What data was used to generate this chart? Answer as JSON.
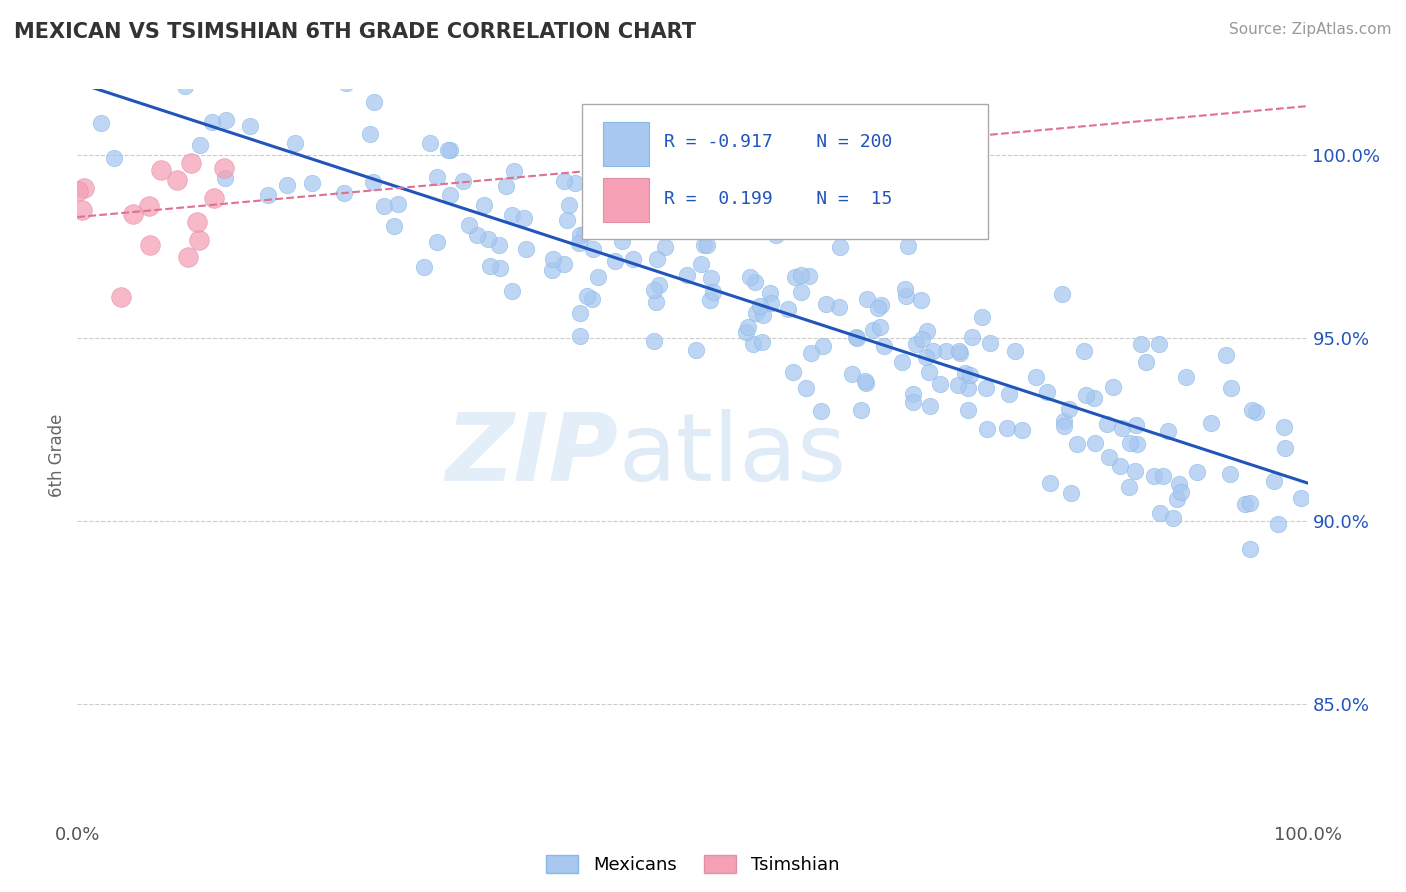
{
  "title": "MEXICAN VS TSIMSHIAN 6TH GRADE CORRELATION CHART",
  "source_text": "Source: ZipAtlas.com",
  "ylabel": "6th Grade",
  "xlim": [
    0.0,
    1.0
  ],
  "ylim": [
    0.818,
    1.018
  ],
  "yticks": [
    0.85,
    0.9,
    0.95,
    1.0
  ],
  "ytick_labels": [
    "85.0%",
    "90.0%",
    "95.0%",
    "100.0%"
  ],
  "legend_r1": "-0.917",
  "legend_n1": "200",
  "legend_r2": "0.199",
  "legend_n2": "15",
  "blue_color": "#a8c8f0",
  "blue_line_color": "#2255bb",
  "pink_color": "#f5a0b5",
  "pink_line_color": "#e07090",
  "grid_color": "#cccccc",
  "watermark_zip": "ZIP",
  "watermark_atlas": "atlas",
  "seed_blue": 42,
  "seed_pink": 99
}
